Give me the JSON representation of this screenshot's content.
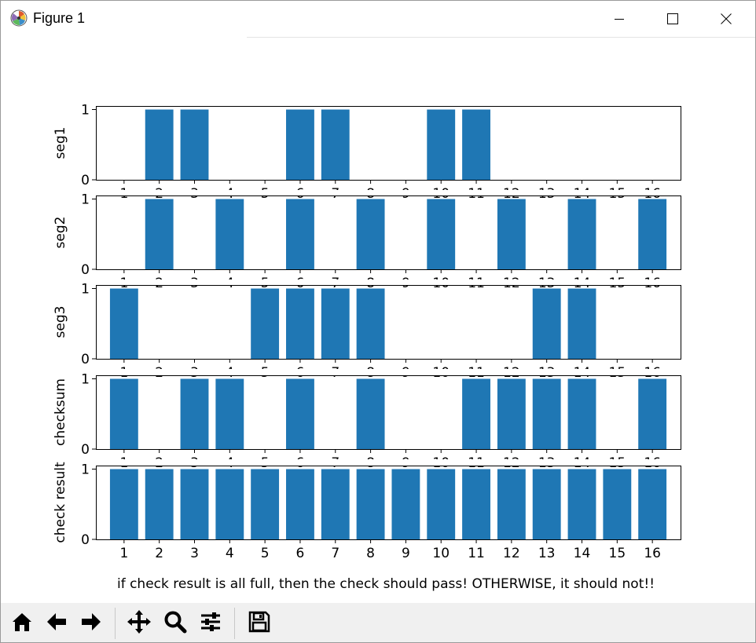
{
  "window": {
    "title": "Figure 1",
    "icon": "matplotlib-icon",
    "controls": [
      "minimize-icon",
      "maximize-icon",
      "close-icon"
    ]
  },
  "toolbar": {
    "buttons": [
      "home-icon",
      "back-arrow-icon",
      "forward-arrow-icon",
      "pan-icon",
      "zoom-icon",
      "subplots-config-icon",
      "save-icon"
    ]
  },
  "colors": {
    "bar": "#1f77b4",
    "axes": "#000000",
    "background": "#ffffff",
    "toolbar": "#f0f0f0"
  },
  "chart_data": {
    "type": "bar",
    "categories": [
      "1",
      "2",
      "3",
      "4",
      "5",
      "6",
      "7",
      "8",
      "9",
      "10",
      "11",
      "12",
      "13",
      "14",
      "15",
      "16"
    ],
    "subplots": [
      {
        "ylabel": "seg1",
        "values": [
          0,
          1,
          1,
          0,
          0,
          1,
          1,
          0,
          0,
          1,
          1,
          0,
          0,
          0,
          0,
          0
        ]
      },
      {
        "ylabel": "seg2",
        "values": [
          0,
          1,
          0,
          1,
          0,
          1,
          0,
          1,
          0,
          1,
          0,
          1,
          0,
          1,
          0,
          1
        ]
      },
      {
        "ylabel": "seg3",
        "values": [
          1,
          0,
          0,
          0,
          1,
          1,
          1,
          1,
          0,
          0,
          0,
          0,
          1,
          1,
          0,
          0
        ]
      },
      {
        "ylabel": "checksum",
        "values": [
          1,
          0,
          1,
          1,
          0,
          1,
          0,
          1,
          0,
          0,
          1,
          1,
          1,
          1,
          0,
          1
        ]
      },
      {
        "ylabel": "check result",
        "values": [
          1,
          1,
          1,
          1,
          1,
          1,
          1,
          1,
          1,
          1,
          1,
          1,
          1,
          1,
          1,
          1
        ]
      }
    ],
    "ylim": [
      0,
      1
    ],
    "yticks": [
      "0",
      "1"
    ],
    "xlabel": "if check result is all full, then the check should pass! OTHERWISE, it should not!!",
    "grid": false
  }
}
